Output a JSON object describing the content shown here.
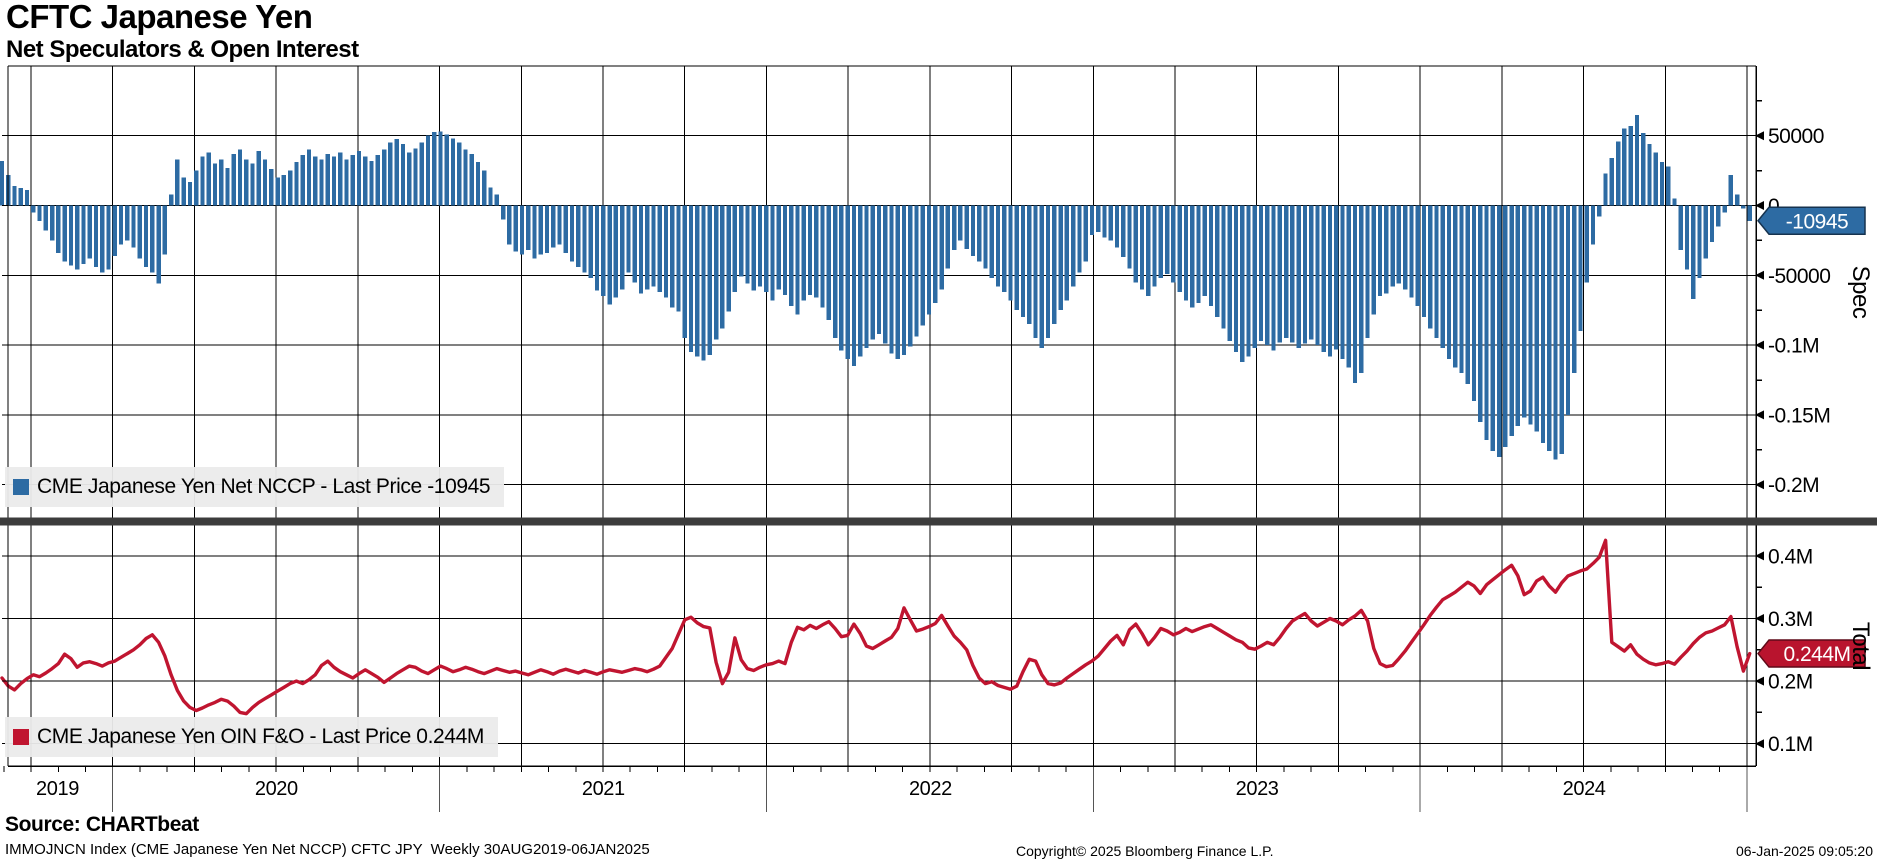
{
  "header": {
    "title": "CFTC Japanese Yen",
    "subtitle": "Net Speculators & Open Interest"
  },
  "chart_data": [
    {
      "type": "bar",
      "name": "CME Japanese Yen Net NCCP",
      "legend": "CME Japanese Yen Net NCCP - Last Price -10945",
      "axis_title": "Spec",
      "last_price": -10945,
      "last_price_label": "-10945",
      "series_color": "#2d6ba3",
      "badge_fill": "#2d6ba3",
      "badge_stroke": "#16334f",
      "ylim": [
        -223000,
        100000
      ],
      "y_ticks": [
        {
          "v": 50000,
          "label": "50000"
        },
        {
          "v": 0,
          "label": "0"
        },
        {
          "v": -50000,
          "label": "-50000"
        },
        {
          "v": -100000,
          "label": "-0.1M"
        },
        {
          "v": -150000,
          "label": "-0.15M"
        },
        {
          "v": -200000,
          "label": "-0.2M"
        }
      ],
      "y_minor_ticks": [
        75000,
        25000,
        -25000,
        -75000,
        -125000,
        -175000
      ],
      "values": [
        32000,
        22000,
        14000,
        12500,
        11000,
        -5000,
        -11000,
        -18000,
        -25000,
        -34000,
        -40000,
        -43000,
        -46000,
        -42000,
        -38000,
        -44000,
        -48000,
        -46000,
        -36000,
        -28000,
        -25000,
        -30000,
        -38000,
        -44000,
        -48000,
        -56000,
        -35000,
        8000,
        33000,
        20000,
        17000,
        25000,
        35000,
        38000,
        30000,
        33000,
        27000,
        37000,
        40000,
        33000,
        30000,
        39000,
        33000,
        26000,
        20000,
        22000,
        25000,
        31000,
        36000,
        40000,
        35000,
        33000,
        37000,
        35000,
        38000,
        33000,
        36000,
        39000,
        35000,
        32000,
        36000,
        40000,
        45000,
        47500,
        44000,
        38000,
        41000,
        45000,
        50000,
        52500,
        53000,
        51000,
        48000,
        45000,
        40000,
        37000,
        31000,
        25000,
        13000,
        8000,
        -10000,
        -28000,
        -33000,
        -35000,
        -32000,
        -38000,
        -35000,
        -34000,
        -30000,
        -28000,
        -34000,
        -40000,
        -44000,
        -48000,
        -52000,
        -61000,
        -65000,
        -71000,
        -66000,
        -60000,
        -48000,
        -55000,
        -63000,
        -60000,
        -58000,
        -62000,
        -66000,
        -73000,
        -76000,
        -95000,
        -105000,
        -108000,
        -111000,
        -107000,
        -96000,
        -88000,
        -76000,
        -62000,
        -51000,
        -56000,
        -61000,
        -58000,
        -62000,
        -68000,
        -60000,
        -64000,
        -72000,
        -78000,
        -68000,
        -64000,
        -66000,
        -73000,
        -82000,
        -95000,
        -104000,
        -110000,
        -115000,
        -108000,
        -102000,
        -96000,
        -92000,
        -99000,
        -106000,
        -110000,
        -107000,
        -101000,
        -94000,
        -86000,
        -78000,
        -70000,
        -60000,
        -45000,
        -32000,
        -25000,
        -31000,
        -36000,
        -40000,
        -45000,
        -52000,
        -58000,
        -62000,
        -68000,
        -75000,
        -80000,
        -85000,
        -95000,
        -102000,
        -95000,
        -85000,
        -75000,
        -68000,
        -58000,
        -48000,
        -40000,
        -21000,
        -19000,
        -23000,
        -25000,
        -30000,
        -37000,
        -45000,
        -55000,
        -60000,
        -65000,
        -58000,
        -52000,
        -49000,
        -55000,
        -62000,
        -68000,
        -73000,
        -70000,
        -65000,
        -72000,
        -80000,
        -88000,
        -97000,
        -105000,
        -112000,
        -108000,
        -102000,
        -97000,
        -100000,
        -104000,
        -98000,
        -95000,
        -98000,
        -102000,
        -99000,
        -96000,
        -100000,
        -105000,
        -108000,
        -103000,
        -110000,
        -116000,
        -127000,
        -120000,
        -95000,
        -78000,
        -65000,
        -63000,
        -58000,
        -56000,
        -60000,
        -66000,
        -72000,
        -80000,
        -88000,
        -95000,
        -102000,
        -110000,
        -116000,
        -120000,
        -128000,
        -140000,
        -155000,
        -168000,
        -176000,
        -180000,
        -173000,
        -165000,
        -158000,
        -152000,
        -157000,
        -162000,
        -170000,
        -176000,
        -182000,
        -178000,
        -150000,
        -120000,
        -90000,
        -55000,
        -28000,
        -8000,
        23000,
        34000,
        46000,
        55000,
        57000,
        65000,
        52000,
        44000,
        38000,
        31000,
        28000,
        5000,
        -32000,
        -46000,
        -67000,
        -52000,
        -38000,
        -26000,
        -15000,
        -5000,
        22000,
        8000,
        -2000,
        -10945
      ]
    },
    {
      "type": "line",
      "name": "CME Japanese Yen OIN F&O",
      "legend": "CME Japanese Yen OIN F&O - Last Price 0.244M",
      "axis_title": "Total",
      "last_price": 0.244,
      "last_price_label": "0.244M",
      "series_color": "#c01530",
      "badge_fill": "#b9142e",
      "badge_stroke": "#5f0a18",
      "ylim": [
        0.065,
        0.448
      ],
      "y_ticks": [
        {
          "v": 0.4,
          "label": "0.4M"
        },
        {
          "v": 0.3,
          "label": "0.3M"
        },
        {
          "v": 0.2,
          "label": "0.2M"
        },
        {
          "v": 0.1,
          "label": "0.1M"
        }
      ],
      "y_minor_ticks": [
        0.45,
        0.35,
        0.25,
        0.15
      ],
      "values": [
        0.205,
        0.192,
        0.186,
        0.196,
        0.204,
        0.21,
        0.207,
        0.213,
        0.22,
        0.228,
        0.243,
        0.236,
        0.222,
        0.229,
        0.231,
        0.228,
        0.224,
        0.229,
        0.232,
        0.238,
        0.244,
        0.25,
        0.258,
        0.268,
        0.274,
        0.262,
        0.24,
        0.21,
        0.185,
        0.168,
        0.158,
        0.153,
        0.157,
        0.162,
        0.166,
        0.171,
        0.168,
        0.16,
        0.15,
        0.148,
        0.158,
        0.166,
        0.172,
        0.178,
        0.184,
        0.19,
        0.196,
        0.2,
        0.196,
        0.202,
        0.21,
        0.225,
        0.232,
        0.222,
        0.215,
        0.21,
        0.205,
        0.212,
        0.218,
        0.212,
        0.206,
        0.198,
        0.205,
        0.212,
        0.218,
        0.224,
        0.222,
        0.216,
        0.212,
        0.218,
        0.224,
        0.22,
        0.215,
        0.218,
        0.222,
        0.219,
        0.215,
        0.212,
        0.216,
        0.22,
        0.217,
        0.214,
        0.216,
        0.213,
        0.21,
        0.214,
        0.218,
        0.215,
        0.211,
        0.216,
        0.219,
        0.216,
        0.213,
        0.217,
        0.214,
        0.211,
        0.215,
        0.218,
        0.216,
        0.214,
        0.217,
        0.22,
        0.218,
        0.215,
        0.219,
        0.224,
        0.238,
        0.252,
        0.275,
        0.298,
        0.302,
        0.293,
        0.287,
        0.285,
        0.23,
        0.196,
        0.214,
        0.269,
        0.234,
        0.22,
        0.217,
        0.222,
        0.226,
        0.228,
        0.232,
        0.228,
        0.262,
        0.286,
        0.282,
        0.289,
        0.284,
        0.29,
        0.295,
        0.284,
        0.271,
        0.273,
        0.291,
        0.276,
        0.256,
        0.252,
        0.258,
        0.264,
        0.27,
        0.284,
        0.317,
        0.298,
        0.28,
        0.283,
        0.287,
        0.292,
        0.305,
        0.288,
        0.272,
        0.262,
        0.25,
        0.225,
        0.205,
        0.196,
        0.199,
        0.193,
        0.19,
        0.187,
        0.192,
        0.215,
        0.235,
        0.232,
        0.21,
        0.196,
        0.194,
        0.197,
        0.205,
        0.212,
        0.219,
        0.226,
        0.232,
        0.24,
        0.252,
        0.264,
        0.273,
        0.258,
        0.282,
        0.291,
        0.276,
        0.258,
        0.27,
        0.284,
        0.28,
        0.274,
        0.278,
        0.284,
        0.279,
        0.283,
        0.287,
        0.29,
        0.284,
        0.278,
        0.272,
        0.266,
        0.262,
        0.253,
        0.251,
        0.256,
        0.262,
        0.258,
        0.27,
        0.284,
        0.296,
        0.302,
        0.308,
        0.296,
        0.288,
        0.294,
        0.3,
        0.296,
        0.29,
        0.298,
        0.304,
        0.313,
        0.296,
        0.252,
        0.228,
        0.223,
        0.225,
        0.236,
        0.248,
        0.262,
        0.276,
        0.29,
        0.305,
        0.318,
        0.33,
        0.336,
        0.342,
        0.35,
        0.358,
        0.352,
        0.34,
        0.354,
        0.362,
        0.37,
        0.378,
        0.385,
        0.368,
        0.338,
        0.344,
        0.36,
        0.366,
        0.352,
        0.342,
        0.357,
        0.368,
        0.372,
        0.376,
        0.379,
        0.388,
        0.398,
        0.425,
        0.262,
        0.255,
        0.248,
        0.258,
        0.243,
        0.235,
        0.229,
        0.226,
        0.228,
        0.231,
        0.227,
        0.238,
        0.248,
        0.26,
        0.27,
        0.277,
        0.28,
        0.285,
        0.29,
        0.303,
        0.255,
        0.216,
        0.244
      ]
    }
  ],
  "x_axis": {
    "frequency": "Weekly",
    "range_start": "30AUG2019",
    "range_end": "06JAN2025",
    "years": [
      "2019",
      "2020",
      "2021",
      "2022",
      "2023",
      "2024"
    ],
    "year_boundaries_weeks": [
      0,
      17.71,
      69.86,
      122.14,
      174.29,
      226.43,
      278.71
    ]
  },
  "footer": {
    "source": "Source: CHARTbeat",
    "note": "IMMOJNCN Index (CME Japanese Yen Net NCCP) CFTC JPY  Weekly 30AUG2019-06JAN2025",
    "copyright": "Copyright© 2025 Bloomberg Finance L.P.",
    "timestamp": "06-Jan-2025 09:05:20"
  },
  "colors": {
    "grid": "#000000",
    "divider": "#3c3c3c",
    "legend_bg": "#ebebeb"
  }
}
